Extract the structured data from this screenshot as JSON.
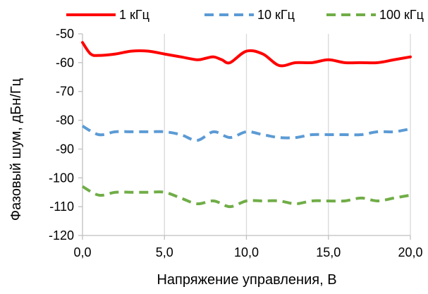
{
  "chart_data": {
    "type": "line",
    "xlabel": "Напряжение управления, В",
    "ylabel": "Фазовый шум, дБн/Гц",
    "xlim": [
      0,
      20
    ],
    "ylim": [
      -120,
      -50
    ],
    "xticks": [
      0,
      5,
      10,
      15,
      20
    ],
    "yticks": [
      -50,
      -60,
      -70,
      -80,
      -90,
      -100,
      -110,
      -120
    ],
    "xtick_labels": [
      "0,0",
      "5,0",
      "10,0",
      "15,0",
      "20,0"
    ],
    "ytick_labels": [
      "-50",
      "-60",
      "-70",
      "-80",
      "-90",
      "-100",
      "-110",
      "-120"
    ],
    "grid": "vertical",
    "legend_position": "top",
    "series": [
      {
        "name": "1 кГц",
        "color": "#ff0000",
        "dash": "solid",
        "x": [
          0,
          0.5,
          1,
          2,
          3,
          4,
          5,
          6,
          7,
          7.5,
          8,
          8.5,
          9,
          10,
          11,
          12,
          13,
          14,
          15,
          16,
          17,
          18,
          19,
          20
        ],
        "y": [
          -53,
          -57,
          -57.5,
          -57,
          -56,
          -56,
          -57,
          -58,
          -59,
          -58.5,
          -58,
          -59,
          -60,
          -56,
          -57,
          -61,
          -60,
          -60,
          -59,
          -60,
          -60,
          -60,
          -59,
          -58
        ]
      },
      {
        "name": "10 кГц",
        "color": "#5b9bd5",
        "dash": "dashed",
        "x": [
          0,
          1,
          2,
          3,
          4,
          5,
          6,
          7,
          8,
          9,
          10,
          11,
          12,
          13,
          14,
          15,
          16,
          17,
          18,
          19,
          20
        ],
        "y": [
          -82,
          -85,
          -84,
          -84,
          -84,
          -84,
          -85,
          -87,
          -84,
          -86,
          -84,
          -85,
          -86,
          -86,
          -85,
          -85,
          -85,
          -85,
          -84,
          -84,
          -83
        ]
      },
      {
        "name": "100 кГц",
        "color": "#70ad47",
        "dash": "dashed",
        "x": [
          0,
          1,
          2,
          3,
          4,
          5,
          6,
          7,
          8,
          9,
          10,
          11,
          12,
          13,
          14,
          15,
          16,
          17,
          18,
          19,
          20
        ],
        "y": [
          -103,
          -106,
          -105,
          -105,
          -105,
          -105,
          -107,
          -109,
          -108,
          -110,
          -108,
          -108,
          -108,
          -109,
          -108,
          -108,
          -108,
          -107,
          -108,
          -107,
          -106
        ]
      }
    ]
  }
}
